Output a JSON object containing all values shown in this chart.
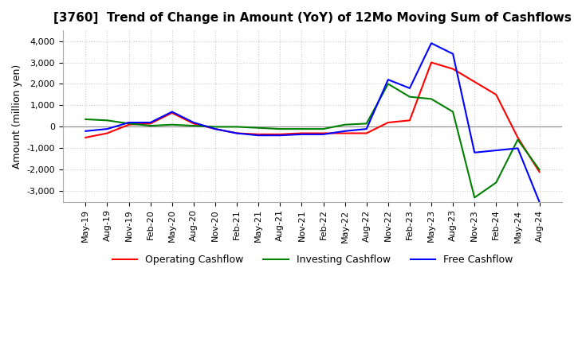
{
  "title": "[3760]  Trend of Change in Amount (YoY) of 12Mo Moving Sum of Cashflows",
  "ylabel": "Amount (million yen)",
  "ylim": [
    -3500,
    4500
  ],
  "yticks": [
    -3000,
    -2000,
    -1000,
    0,
    1000,
    2000,
    3000,
    4000
  ],
  "x_labels": [
    "May-19",
    "Aug-19",
    "Nov-19",
    "Feb-20",
    "May-20",
    "Aug-20",
    "Nov-20",
    "Feb-21",
    "May-21",
    "Aug-21",
    "Nov-21",
    "Feb-22",
    "May-22",
    "Aug-22",
    "Nov-22",
    "Feb-23",
    "May-23",
    "Aug-23",
    "Nov-23",
    "Feb-24",
    "May-24",
    "Aug-24"
  ],
  "operating": [
    -500,
    -300,
    100,
    150,
    650,
    150,
    -100,
    -300,
    -350,
    -350,
    -300,
    -300,
    -300,
    -300,
    200,
    300,
    3000,
    2700,
    2100,
    1500,
    -500,
    -2100
  ],
  "investing": [
    350,
    300,
    150,
    50,
    100,
    50,
    0,
    0,
    -50,
    -100,
    -100,
    -100,
    100,
    150,
    2000,
    1400,
    1300,
    700,
    -3300,
    -2600,
    -600,
    -2000
  ],
  "free": [
    -200,
    -100,
    200,
    200,
    700,
    200,
    -100,
    -300,
    -400,
    -400,
    -350,
    -350,
    -200,
    -100,
    2200,
    1800,
    3900,
    3400,
    -1200,
    -1100,
    -1000,
    -3500
  ],
  "op_color": "#FF0000",
  "inv_color": "#008000",
  "free_color": "#0000FF",
  "background_color": "#FFFFFF",
  "grid_color": "#CCCCCC",
  "title_fontsize": 11,
  "axis_fontsize": 9,
  "tick_fontsize": 8
}
